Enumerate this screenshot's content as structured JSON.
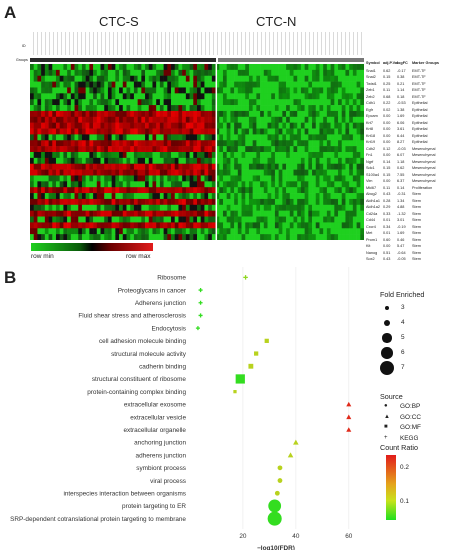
{
  "panel_a": {
    "letter": "A",
    "group_left": "CTC-S",
    "group_right": "CTC-N",
    "row_label_id": "ID",
    "row_label_groups": "Groups",
    "table_headers": [
      "Symbol",
      "adj.P.Val",
      "logFC",
      "Marker Groups"
    ],
    "genes": [
      [
        "Snai1",
        "0.62",
        "-0.17",
        "EMT-TF"
      ],
      [
        "Snai2",
        "0.15",
        "0.38",
        "EMT-TF"
      ],
      [
        "Twist1",
        "0.25",
        "0.21",
        "EMT-TF"
      ],
      [
        "Zeb1",
        "0.11",
        "1.14",
        "EMT-TF"
      ],
      [
        "Zeb2",
        "0.68",
        "0.18",
        "EMT-TF"
      ],
      [
        "Cdh1",
        "0.22",
        "-0.53",
        "Epithelial"
      ],
      [
        "Egfr",
        "0.02",
        "1.38",
        "Epithelial"
      ],
      [
        "Epcam",
        "0.00",
        "1.69",
        "Epithelial"
      ],
      [
        "Krt7",
        "0.00",
        "6.06",
        "Epithelial"
      ],
      [
        "Krt8",
        "0.00",
        "3.61",
        "Epithelial"
      ],
      [
        "Krt18",
        "0.00",
        "6.44",
        "Epithelial"
      ],
      [
        "Krt19",
        "0.00",
        "8.27",
        "Epithelial"
      ],
      [
        "Cdh2",
        "0.12",
        "-0.03",
        "Mesenchymal"
      ],
      [
        "Fn1",
        "0.00",
        "6.07",
        "Mesenchymal"
      ],
      [
        "Ngrf",
        "0.14",
        "1.18",
        "Mesenchymal"
      ],
      [
        "Sdc1",
        "0.15",
        "0.62",
        "Mesenchymal"
      ],
      [
        "S100a4",
        "0.15",
        "7.55",
        "Mesenchymal"
      ],
      [
        "Vim",
        "0.00",
        "6.37",
        "Mesenchymal"
      ],
      [
        "Mki67",
        "0.11",
        "0.14",
        "Proliferation"
      ],
      [
        "Abcg2",
        "0.43",
        "-0.31",
        "Stem"
      ],
      [
        "Aldh1a1",
        "0.28",
        "1.34",
        "Stem"
      ],
      [
        "Aldh1a2",
        "0.29",
        "4.88",
        "Stem"
      ],
      [
        "Cd24a",
        "0.33",
        "-1.32",
        "Stem"
      ],
      [
        "Cd44",
        "0.01",
        "3.01",
        "Stem"
      ],
      [
        "Cxcr4",
        "0.34",
        "-0.19",
        "Stem"
      ],
      [
        "Met",
        "0.01",
        "1.69",
        "Stem"
      ],
      [
        "Prom1",
        "0.60",
        "0.46",
        "Stem"
      ],
      [
        "Kit",
        "0.00",
        "5.47",
        "Stem"
      ],
      [
        "Nanog",
        "0.51",
        "-0.64",
        "Stem"
      ],
      [
        "Sox2",
        "0.43",
        "-0.05",
        "Stem"
      ]
    ],
    "scale_min": "row min",
    "scale_max": "row max"
  },
  "panel_b": {
    "letter": "B",
    "xlabel": "−log10(FDR)",
    "ticks": [
      "20",
      "40",
      "60"
    ],
    "chart_data": {
      "type": "scatter",
      "xlabel": "−log10(FDR)",
      "xlim": [
        0,
        65
      ],
      "x_ticks": [
        20,
        40,
        60
      ],
      "terms": [
        {
          "label": "Ribosome",
          "x": 21,
          "fold": 3.2,
          "source": "KEGG",
          "ratio": 0.08
        },
        {
          "label": "Proteoglycans in cancer",
          "x": 4,
          "fold": 3,
          "source": "KEGG",
          "ratio": 0.06
        },
        {
          "label": "Adherens junction",
          "x": 4,
          "fold": 3,
          "source": "KEGG",
          "ratio": 0.06
        },
        {
          "label": "Fluid shear stress and atherosclerosis",
          "x": 4,
          "fold": 3,
          "source": "KEGG",
          "ratio": 0.06
        },
        {
          "label": "Endocytosis",
          "x": 3,
          "fold": 3,
          "source": "KEGG",
          "ratio": 0.06
        },
        {
          "label": "cell adhesion molecule binding",
          "x": 29,
          "fold": 3.5,
          "source": "GO:MF",
          "ratio": 0.1
        },
        {
          "label": "structural molecule activity",
          "x": 25,
          "fold": 3.5,
          "source": "GO:MF",
          "ratio": 0.1
        },
        {
          "label": "cadherin binding",
          "x": 23,
          "fold": 3.8,
          "source": "GO:MF",
          "ratio": 0.1
        },
        {
          "label": "structural constituent of ribosome",
          "x": 19,
          "fold": 6,
          "source": "GO:MF",
          "ratio": 0.06
        },
        {
          "label": "protein-containing complex binding",
          "x": 17,
          "fold": 3,
          "source": "GO:MF",
          "ratio": 0.12
        },
        {
          "label": "extracellular exosome",
          "x": 60,
          "fold": 3.4,
          "source": "GO:CC",
          "ratio": 0.22
        },
        {
          "label": "extracellular vesicle",
          "x": 60,
          "fold": 3.4,
          "source": "GO:CC",
          "ratio": 0.22
        },
        {
          "label": "extracellular organelle",
          "x": 60,
          "fold": 3.4,
          "source": "GO:CC",
          "ratio": 0.22
        },
        {
          "label": "anchoring junction",
          "x": 40,
          "fold": 3.6,
          "source": "GO:CC",
          "ratio": 0.1
        },
        {
          "label": "adherens junction",
          "x": 38,
          "fold": 3.6,
          "source": "GO:CC",
          "ratio": 0.1
        },
        {
          "label": "symbiont process",
          "x": 34,
          "fold": 3.3,
          "source": "GO:BP",
          "ratio": 0.12
        },
        {
          "label": "viral process",
          "x": 34,
          "fold": 3.3,
          "source": "GO:BP",
          "ratio": 0.12
        },
        {
          "label": "interspecies interaction between organisms",
          "x": 33,
          "fold": 3.3,
          "source": "GO:BP",
          "ratio": 0.12
        },
        {
          "label": "protein targeting to ER",
          "x": 32,
          "fold": 6.5,
          "source": "GO:BP",
          "ratio": 0.06
        },
        {
          "label": "SRP-dependent cotranslational protein targeting to membrane",
          "x": 32,
          "fold": 7,
          "source": "GO:BP",
          "ratio": 0.06
        }
      ]
    },
    "legend": {
      "fold_title": "Fold Enriched",
      "fold_levels": [
        "3",
        "4",
        "5",
        "6",
        "7"
      ],
      "source_title": "Source",
      "sources": [
        "GO:BP",
        "GO:CC",
        "GO:MF",
        "KEGG"
      ],
      "ratio_title": "Count Ratio",
      "ratio_ticks": [
        "0.2",
        "0.1"
      ]
    }
  }
}
